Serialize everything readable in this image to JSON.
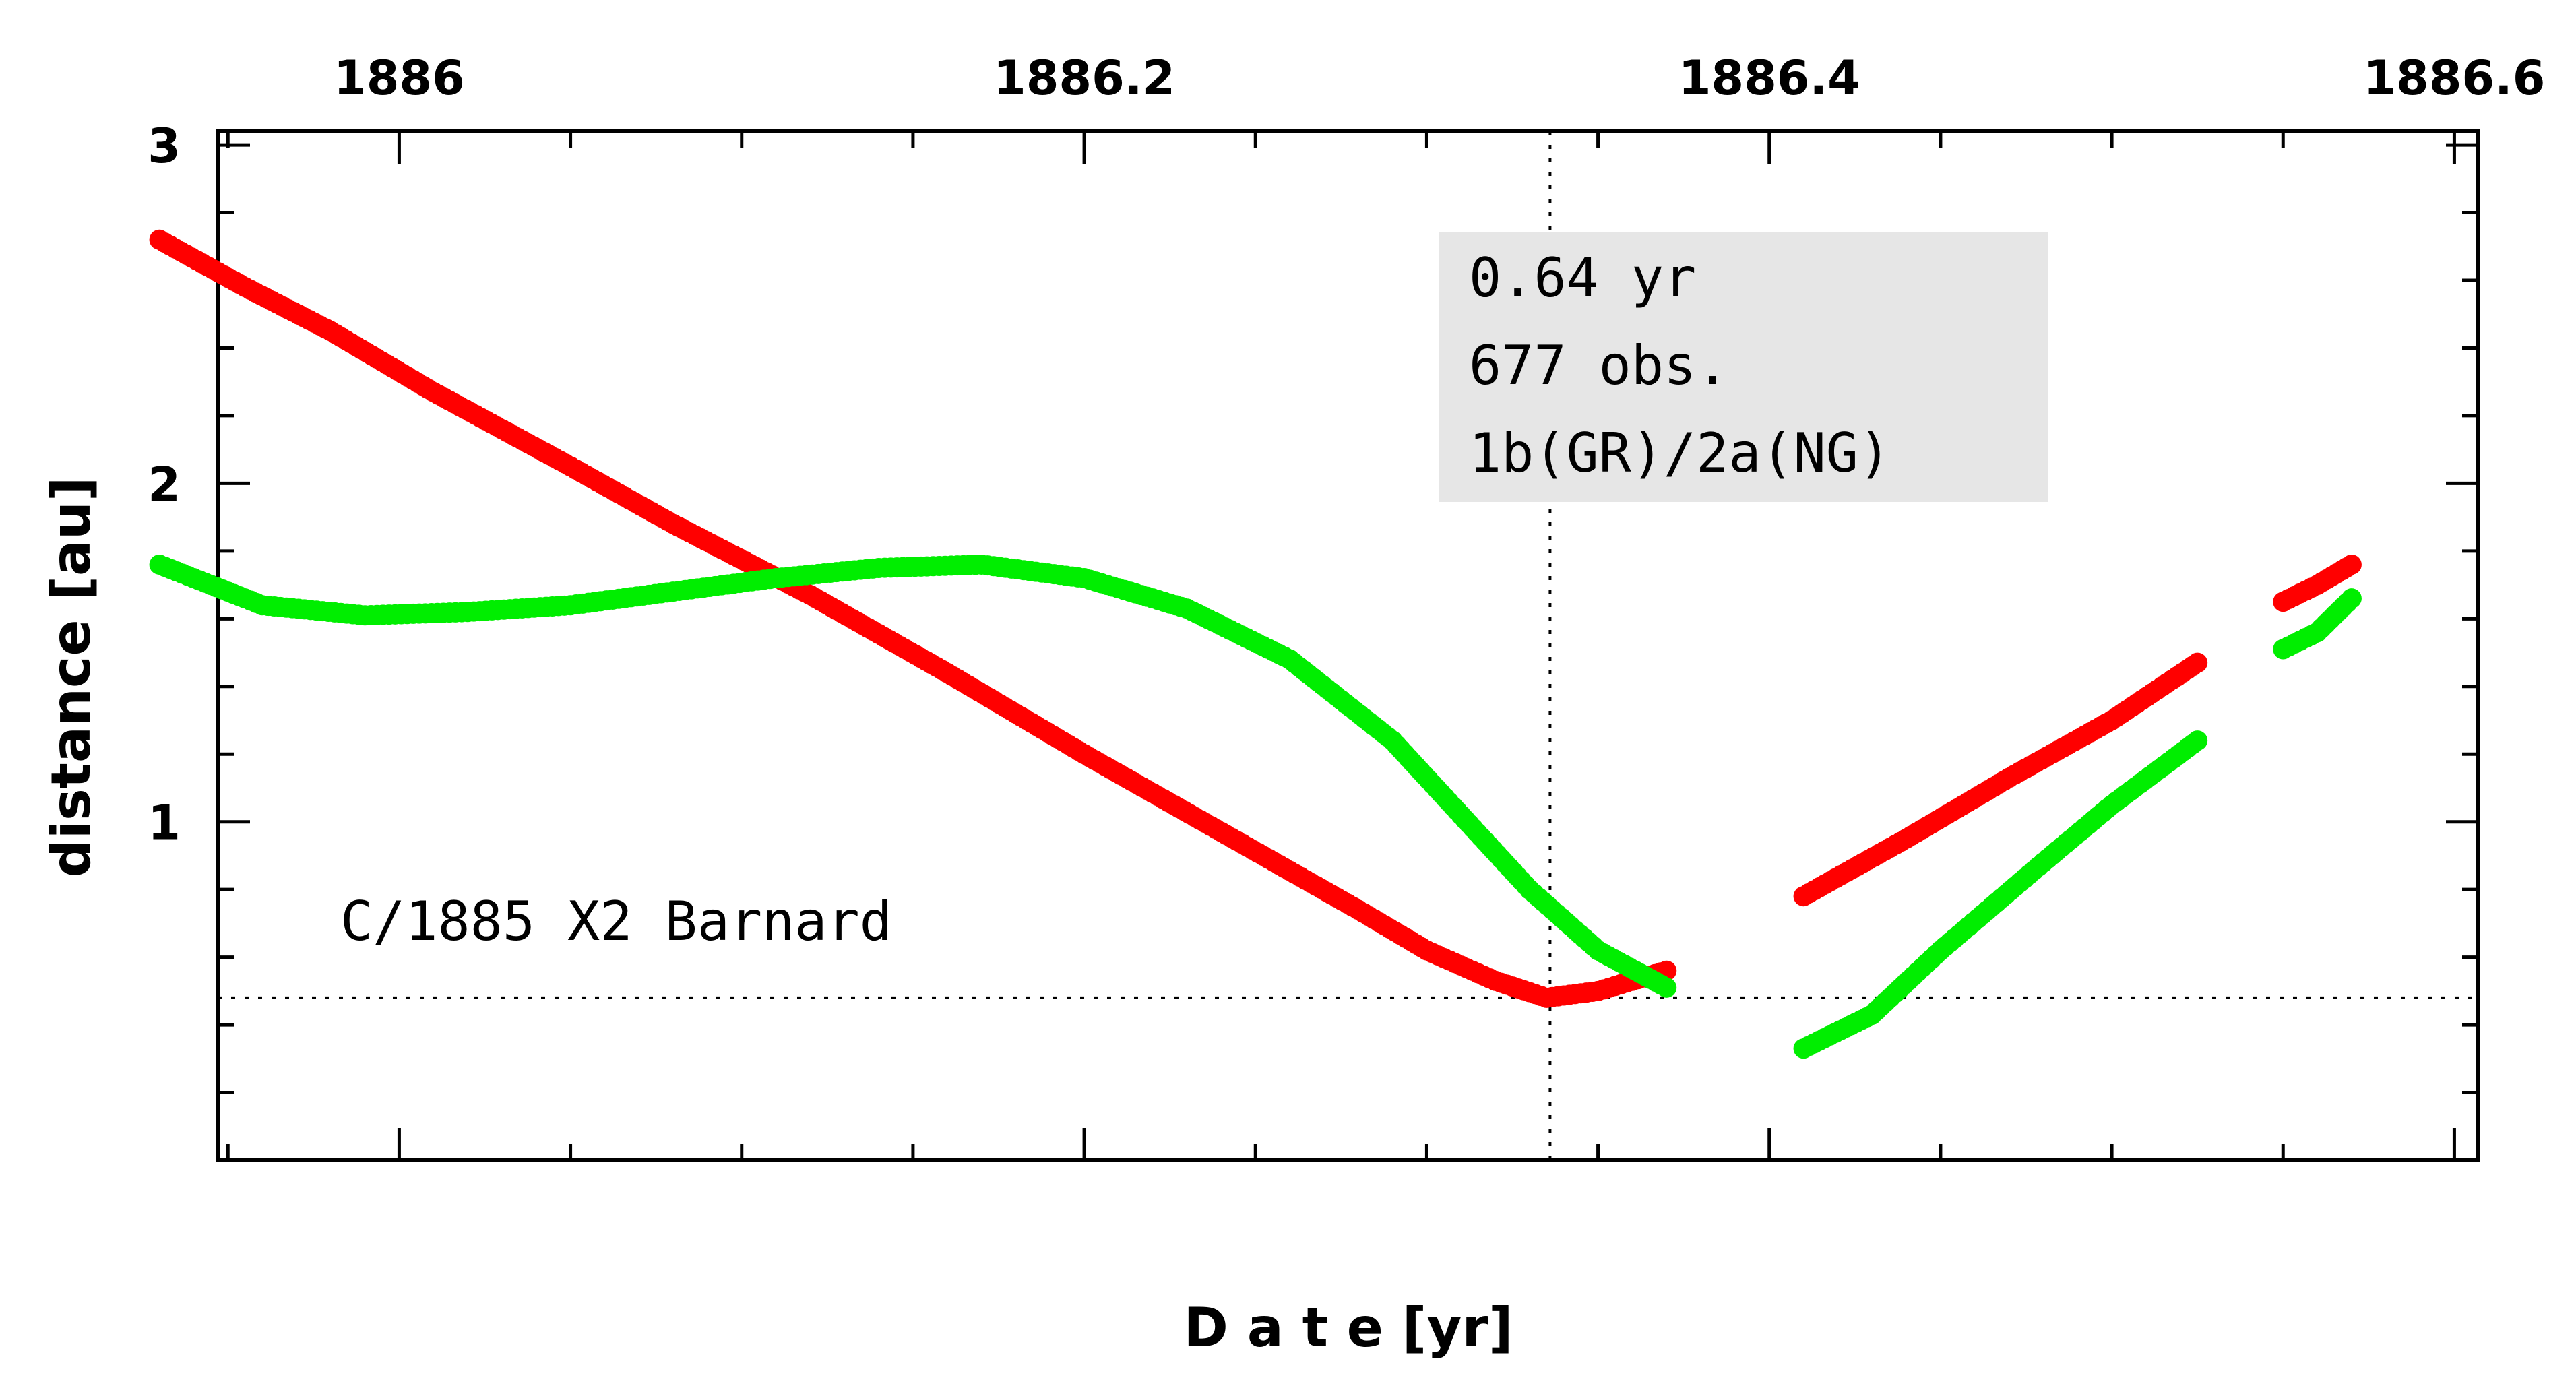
{
  "chart_data": {
    "type": "scatter",
    "title": "",
    "xlabel": "D a t e [yr]",
    "ylabel": "distance [au]",
    "xlim": [
      1885.947,
      1886.607
    ],
    "ylim": [
      0.0,
      3.04
    ],
    "x_ticks": [
      1886.0,
      1886.2,
      1886.4,
      1886.6
    ],
    "x_tick_labels": [
      "1886",
      "1886.2",
      "1886.4",
      "1886.6"
    ],
    "y_ticks": [
      1,
      2,
      3
    ],
    "y_tick_labels": [
      "1",
      "2",
      "3"
    ],
    "grid": false,
    "legend": "none",
    "label": "C/1885 X2 Barnard",
    "info_box": [
      "0.64 yr",
      "677 obs.",
      "1b(GR)/2a(NG)"
    ],
    "reference_lines": {
      "perihelion_date": 1886.336,
      "perihelion_distance": 0.48
    },
    "series": [
      {
        "color": "#ff0000",
        "segments": [
          {
            "x": [
              1885.93,
              1885.955,
              1885.98,
              1886.01,
              1886.05,
              1886.08,
              1886.12,
              1886.16,
              1886.2,
              1886.24,
              1886.28,
              1886.3,
              1886.32,
              1886.335,
              1886.35,
              1886.37
            ],
            "y": [
              2.72,
              2.58,
              2.45,
              2.27,
              2.05,
              1.88,
              1.67,
              1.44,
              1.2,
              0.97,
              0.74,
              0.62,
              0.53,
              0.48,
              0.5,
              0.56
            ]
          },
          {
            "x": [
              1886.41,
              1886.44,
              1886.47,
              1886.5,
              1886.525
            ],
            "y": [
              0.78,
              0.95,
              1.13,
              1.3,
              1.47
            ]
          },
          {
            "x": [
              1886.55,
              1886.56,
              1886.57
            ],
            "y": [
              1.65,
              1.7,
              1.76
            ]
          }
        ]
      },
      {
        "color": "#00ee00",
        "segments": [
          {
            "x": [
              1885.93,
              1885.96,
              1885.99,
              1886.02,
              1886.05,
              1886.08,
              1886.11,
              1886.14,
              1886.17,
              1886.2,
              1886.23,
              1886.26,
              1886.29,
              1886.31,
              1886.33,
              1886.35,
              1886.37
            ],
            "y": [
              1.76,
              1.64,
              1.61,
              1.62,
              1.64,
              1.68,
              1.72,
              1.75,
              1.76,
              1.72,
              1.63,
              1.48,
              1.24,
              1.02,
              0.8,
              0.62,
              0.51
            ]
          },
          {
            "x": [
              1886.41,
              1886.43,
              1886.45,
              1886.48,
              1886.5,
              1886.525
            ],
            "y": [
              0.33,
              0.43,
              0.62,
              0.88,
              1.05,
              1.24
            ]
          },
          {
            "x": [
              1886.55,
              1886.56,
              1886.57
            ],
            "y": [
              1.51,
              1.56,
              1.66
            ]
          }
        ]
      }
    ]
  }
}
